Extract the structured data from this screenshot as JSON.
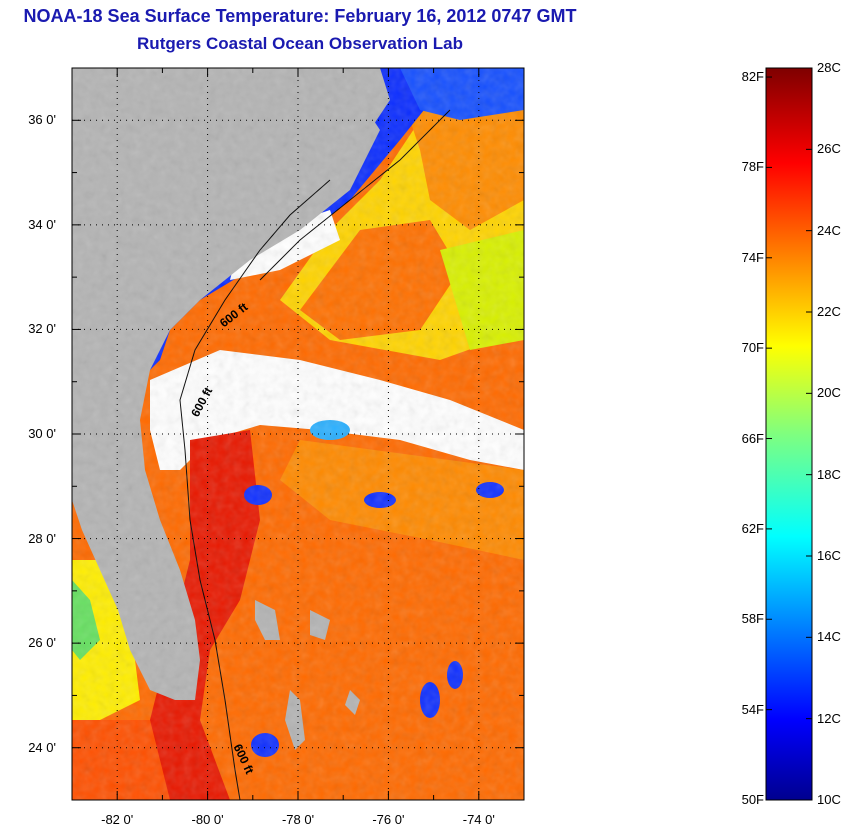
{
  "title": {
    "line1": "NOAA-18 Sea Surface Temperature:  February 16, 2012 0747 GMT",
    "line2": "Rutgers Coastal Ocean Observation Lab"
  },
  "map": {
    "lon_range": [
      -83,
      -73
    ],
    "lat_range": [
      23,
      37
    ],
    "lat_labels": [
      "36 0'",
      "34 0'",
      "32 0'",
      "30 0'",
      "28 0'",
      "26 0'",
      "24 0'"
    ],
    "lat_values": [
      36,
      34,
      32,
      30,
      28,
      26,
      24
    ],
    "lon_labels": [
      "-82 0'",
      "-80 0'",
      "-78 0'",
      "-76 0'",
      "-74 0'"
    ],
    "lon_values": [
      -82,
      -80,
      -78,
      -76,
      -74
    ],
    "contour_labels": [
      "600 ft",
      "600 ft",
      "600 ft"
    ],
    "land_color": "#b4b4b4",
    "cloud_color": "#ffffff"
  },
  "colorbar": {
    "fahrenheit_labels": [
      "82F",
      "78F",
      "74F",
      "70F",
      "66F",
      "62F",
      "58F",
      "54F",
      "50F"
    ],
    "fahrenheit_values": [
      82,
      78,
      74,
      70,
      66,
      62,
      58,
      54,
      50
    ],
    "celsius_labels": [
      "28C",
      "26C",
      "24C",
      "22C",
      "20C",
      "18C",
      "16C",
      "14C",
      "12C",
      "10C"
    ],
    "celsius_values": [
      28,
      26,
      24,
      22,
      20,
      18,
      16,
      14,
      12,
      10
    ],
    "range_celsius": [
      10,
      28
    ],
    "colormap": "jet"
  }
}
